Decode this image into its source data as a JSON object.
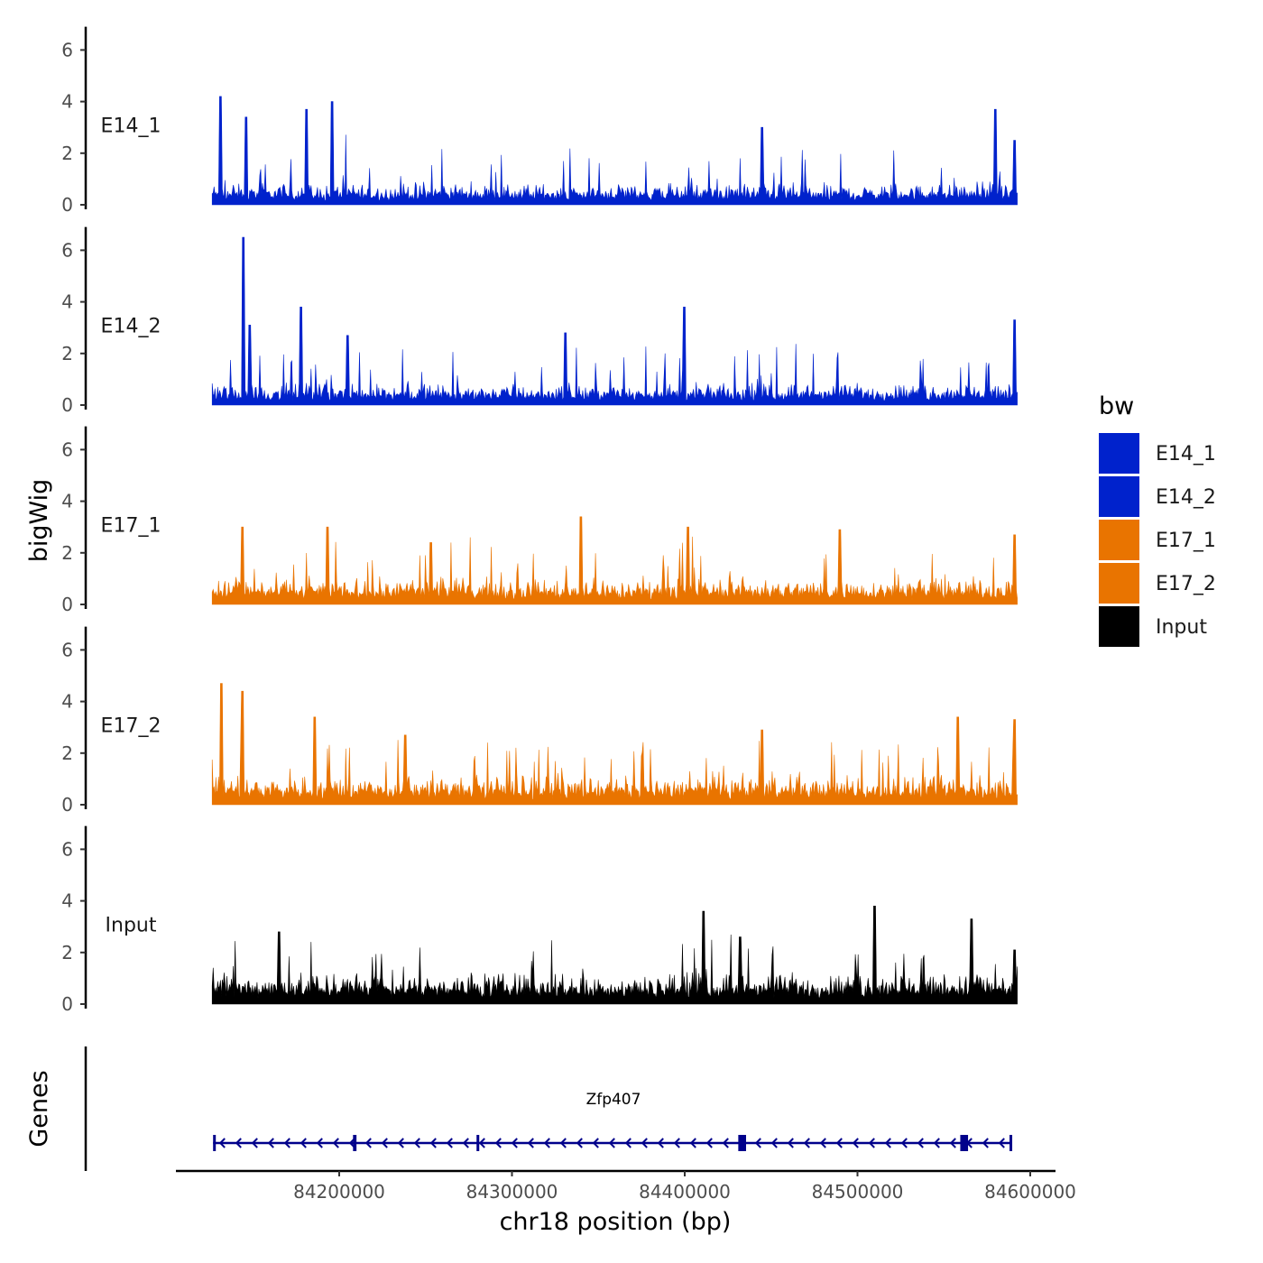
{
  "chart_data": {
    "type": "area",
    "title": "",
    "ylabel": "bigWig",
    "xlabel": "chr18 position (bp)",
    "genes_axis_title": "Genes",
    "ylim": [
      0,
      7
    ],
    "y_ticks": [
      "0",
      "2",
      "4",
      "6"
    ],
    "x_range": [
      84126500,
      84592500
    ],
    "x_ticks": [
      {
        "value": 84200000,
        "label": "84200000"
      },
      {
        "value": 84300000,
        "label": "84300000"
      },
      {
        "value": 84400000,
        "label": "84400000"
      },
      {
        "value": 84500000,
        "label": "84500000"
      },
      {
        "value": 84600000,
        "label": "84600000"
      }
    ],
    "series": [
      {
        "name": "E14_1",
        "color": "#0022CC",
        "base": 0.45,
        "peaks": [
          [
            84131500,
            4.2
          ],
          [
            84146000,
            3.4
          ],
          [
            84181000,
            3.7
          ],
          [
            84196000,
            4.0
          ],
          [
            84580000,
            3.7
          ],
          [
            84591000,
            2.5
          ],
          [
            84445000,
            3.0
          ]
        ]
      },
      {
        "name": "E14_2",
        "color": "#0022CC",
        "base": 0.45,
        "peaks": [
          [
            84144500,
            6.5
          ],
          [
            84148000,
            3.1
          ],
          [
            84178000,
            3.8
          ],
          [
            84400000,
            3.8
          ],
          [
            84331000,
            2.8
          ],
          [
            84591000,
            3.3
          ],
          [
            84205000,
            2.7
          ]
        ]
      },
      {
        "name": "E17_1",
        "color": "#E97400",
        "base": 0.55,
        "peaks": [
          [
            84144000,
            3.0
          ],
          [
            84193000,
            3.0
          ],
          [
            84340000,
            3.4
          ],
          [
            84402000,
            3.0
          ],
          [
            84490000,
            2.9
          ],
          [
            84591000,
            2.7
          ],
          [
            84253000,
            2.4
          ]
        ]
      },
      {
        "name": "E17_2",
        "color": "#E97400",
        "base": 0.6,
        "peaks": [
          [
            84132000,
            4.7
          ],
          [
            84144000,
            4.4
          ],
          [
            84186000,
            3.4
          ],
          [
            84238000,
            2.7
          ],
          [
            84558000,
            3.4
          ],
          [
            84591000,
            3.3
          ],
          [
            84445000,
            2.9
          ]
        ]
      },
      {
        "name": "Input",
        "color": "#000000",
        "base": 0.65,
        "peaks": [
          [
            84411000,
            3.6
          ],
          [
            84432000,
            2.6
          ],
          [
            84510000,
            3.8
          ],
          [
            84566000,
            3.3
          ],
          [
            84165000,
            2.8
          ],
          [
            84591000,
            2.1
          ]
        ]
      }
    ],
    "legend": {
      "title": "bw",
      "position": "right",
      "entries": [
        {
          "label": "E14_1",
          "color": "#0022CC"
        },
        {
          "label": "E14_2",
          "color": "#0022CC"
        },
        {
          "label": "E17_1",
          "color": "#E97400"
        },
        {
          "label": "E17_2",
          "color": "#E97400"
        },
        {
          "label": "Input",
          "color": "#000000"
        }
      ]
    },
    "gene": {
      "name": "Zfp407",
      "strand": "-",
      "color": "#00008B",
      "start": 84127000,
      "end": 84589000,
      "exons": [
        [
          84127000,
          84128500
        ],
        [
          84208000,
          84210000
        ],
        [
          84279500,
          84280500
        ],
        [
          84431000,
          84435500
        ],
        [
          84559500,
          84564000
        ],
        [
          84588000,
          84589000
        ]
      ]
    }
  }
}
